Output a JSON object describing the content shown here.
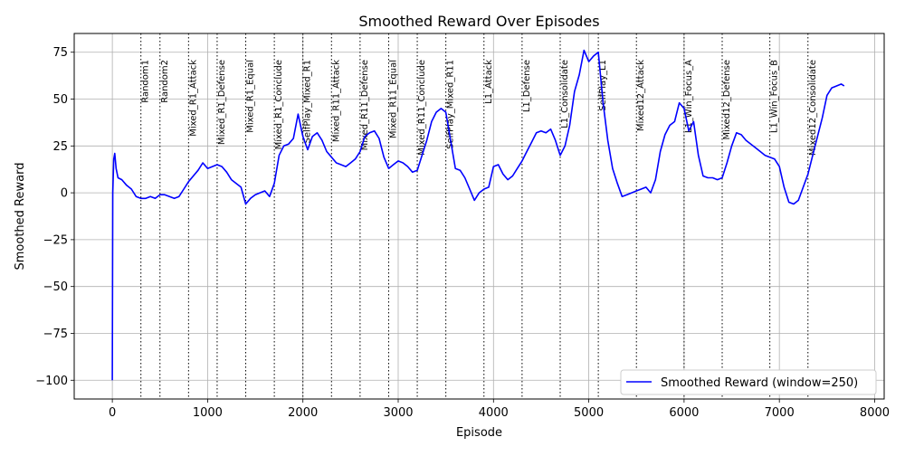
{
  "chart_data": {
    "type": "line",
    "title": "Smoothed Reward Over Episodes",
    "xlabel": "Episode",
    "ylabel": "Smoothed Reward",
    "xlim": [
      -400,
      8100
    ],
    "ylim": [
      -110,
      85
    ],
    "xticks": [
      0,
      1000,
      2000,
      3000,
      4000,
      5000,
      6000,
      7000,
      8000
    ],
    "yticks": [
      -100,
      -75,
      -50,
      -25,
      0,
      25,
      50,
      75
    ],
    "grid": true,
    "legend": {
      "position": "lower-right",
      "entries": [
        "Smoothed Reward (window=250)"
      ]
    },
    "series": [
      {
        "name": "Smoothed Reward (window=250)",
        "color": "#0000ff",
        "x": [
          0,
          5,
          15,
          25,
          40,
          60,
          100,
          150,
          200,
          250,
          300,
          350,
          400,
          450,
          500,
          550,
          600,
          650,
          700,
          750,
          800,
          850,
          900,
          950,
          1000,
          1050,
          1100,
          1150,
          1200,
          1250,
          1300,
          1350,
          1400,
          1450,
          1500,
          1550,
          1600,
          1650,
          1700,
          1750,
          1800,
          1850,
          1900,
          1950,
          2000,
          2050,
          2100,
          2150,
          2200,
          2250,
          2300,
          2350,
          2400,
          2450,
          2500,
          2550,
          2600,
          2650,
          2700,
          2750,
          2800,
          2850,
          2900,
          2950,
          3000,
          3050,
          3100,
          3150,
          3200,
          3250,
          3300,
          3350,
          3400,
          3450,
          3500,
          3550,
          3600,
          3650,
          3700,
          3750,
          3800,
          3850,
          3900,
          3950,
          4000,
          4050,
          4100,
          4150,
          4200,
          4250,
          4300,
          4350,
          4400,
          4450,
          4500,
          4550,
          4600,
          4650,
          4700,
          4750,
          4800,
          4850,
          4900,
          4950,
          5000,
          5050,
          5100,
          5150,
          5200,
          5250,
          5300,
          5350,
          5400,
          5450,
          5500,
          5550,
          5600,
          5650,
          5700,
          5750,
          5800,
          5850,
          5900,
          5950,
          6000,
          6050,
          6100,
          6150,
          6200,
          6250,
          6300,
          6350,
          6400,
          6450,
          6500,
          6550,
          6600,
          6650,
          6700,
          6750,
          6800,
          6850,
          6900,
          6950,
          7000,
          7050,
          7100,
          7150,
          7200,
          7250,
          7300,
          7350,
          7400,
          7450,
          7500,
          7550,
          7600,
          7650,
          7680
        ],
        "y": [
          -100,
          0,
          18,
          21,
          13,
          8,
          7,
          4,
          2,
          -2,
          -3,
          -3,
          -2,
          -3,
          -1,
          -1,
          -2,
          -3,
          -2,
          2,
          6,
          9,
          12,
          16,
          13,
          14,
          15,
          14,
          11,
          7,
          5,
          3,
          -6,
          -3,
          -1,
          0,
          1,
          -2,
          5,
          20,
          25,
          26,
          29,
          42,
          30,
          23,
          30,
          32,
          28,
          22,
          19,
          16,
          15,
          14,
          16,
          18,
          22,
          30,
          32,
          33,
          29,
          19,
          13,
          15,
          17,
          16,
          14,
          11,
          12,
          20,
          28,
          38,
          43,
          45,
          43,
          28,
          13,
          12,
          8,
          2,
          -4,
          0,
          2,
          3,
          14,
          15,
          10,
          7,
          9,
          13,
          17,
          22,
          27,
          32,
          33,
          32,
          34,
          28,
          20,
          25,
          36,
          54,
          63,
          76,
          70,
          73,
          75,
          48,
          28,
          13,
          5,
          -2,
          -1,
          0,
          1,
          2,
          3,
          0,
          7,
          22,
          31,
          36,
          38,
          48,
          45,
          33,
          38,
          20,
          9,
          8,
          8,
          7,
          8,
          16,
          25,
          32,
          31,
          28,
          26,
          24,
          22,
          20,
          19,
          18,
          14,
          3,
          -5,
          -6,
          -4,
          3,
          10,
          20,
          30,
          40,
          52,
          56,
          57,
          58,
          57
        ]
      }
    ],
    "phases": [
      {
        "x": 300,
        "label": "Random1"
      },
      {
        "x": 500,
        "label": "Random2"
      },
      {
        "x": 800,
        "label": "Mixed_R1_Attack"
      },
      {
        "x": 1100,
        "label": "Mixed_R1_Defense"
      },
      {
        "x": 1400,
        "label": "Mixed_R1_Equal"
      },
      {
        "x": 1700,
        "label": "Mixed_R1_Conclude"
      },
      {
        "x": 2000,
        "label": "SelfPlay_Mixed_R1"
      },
      {
        "x": 2300,
        "label": "Mixed_R11_Attack"
      },
      {
        "x": 2600,
        "label": "Mixed_R11_Defense"
      },
      {
        "x": 2900,
        "label": "Mixed_R11_Equal"
      },
      {
        "x": 3200,
        "label": "Mixed_R11_Conclude"
      },
      {
        "x": 3500,
        "label": "SelfPlay_Mixed_R11"
      },
      {
        "x": 3900,
        "label": "L1_Attack"
      },
      {
        "x": 4300,
        "label": "L1_Defense"
      },
      {
        "x": 4700,
        "label": "L1_Consolidate"
      },
      {
        "x": 5100,
        "label": "SelfPlay_L1"
      },
      {
        "x": 5500,
        "label": "Mixed12_Attack"
      },
      {
        "x": 6000,
        "label": "L1_Win_Focus_A"
      },
      {
        "x": 6400,
        "label": "Mixed12_Defense"
      },
      {
        "x": 6900,
        "label": "L1_Win_Focus_B"
      },
      {
        "x": 7300,
        "label": "Mixed12_Consolidate"
      }
    ]
  }
}
